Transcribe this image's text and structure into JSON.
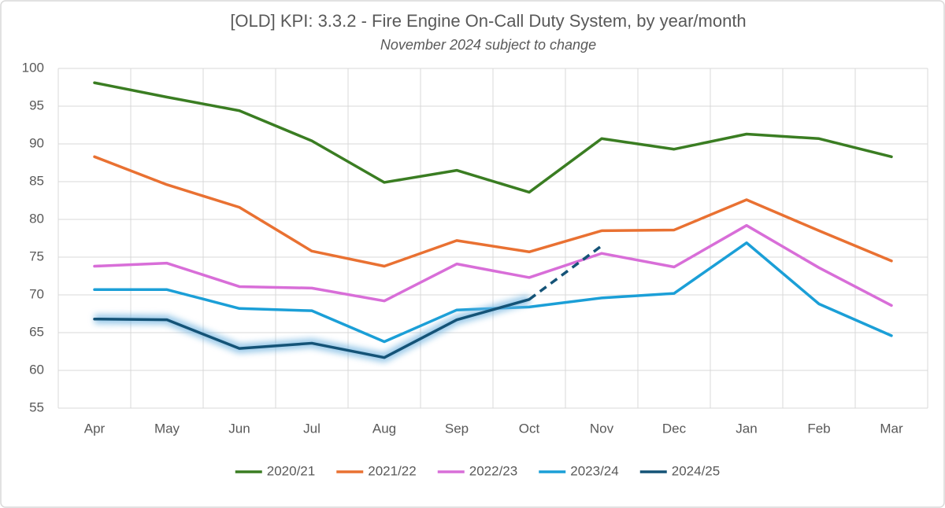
{
  "chart_data": {
    "type": "line",
    "title": "[OLD] KPI: 3.3.2 - Fire Engine On-Call Duty System, by year/month",
    "subtitle": "November 2024 subject to change",
    "categories": [
      "Apr",
      "May",
      "Jun",
      "Jul",
      "Aug",
      "Sep",
      "Oct",
      "Nov",
      "Dec",
      "Jan",
      "Feb",
      "Mar"
    ],
    "series": [
      {
        "name": "2020/21",
        "color": "#3a7d22",
        "values": [
          98.1,
          96.2,
          94.4,
          90.4,
          84.9,
          86.5,
          83.6,
          90.7,
          89.3,
          91.3,
          90.7,
          88.3
        ]
      },
      {
        "name": "2021/22",
        "color": "#e97132",
        "values": [
          88.3,
          84.6,
          81.6,
          75.8,
          73.8,
          77.2,
          75.7,
          78.5,
          78.6,
          82.6,
          78.5,
          74.5
        ]
      },
      {
        "name": "2022/23",
        "color": "#d86ed8",
        "values": [
          73.8,
          74.2,
          71.1,
          70.9,
          69.2,
          74.1,
          72.3,
          75.5,
          73.7,
          79.2,
          73.6,
          68.6
        ]
      },
      {
        "name": "2023/24",
        "color": "#1b9fd7",
        "values": [
          70.7,
          70.7,
          68.2,
          67.9,
          63.8,
          68.0,
          68.4,
          69.6,
          70.2,
          76.9,
          68.8,
          64.6
        ]
      },
      {
        "name": "2024/25",
        "color": "#145377",
        "values": [
          66.8,
          66.7,
          62.9,
          63.6,
          61.7,
          66.7,
          69.4,
          76.5,
          null,
          null,
          null,
          null
        ],
        "glow": true,
        "dashed_after_index": 6
      }
    ],
    "ylim": [
      55,
      100
    ],
    "yticks": [
      55,
      60,
      65,
      70,
      75,
      80,
      85,
      90,
      95,
      100
    ],
    "grid": true,
    "legend": "bottom"
  }
}
